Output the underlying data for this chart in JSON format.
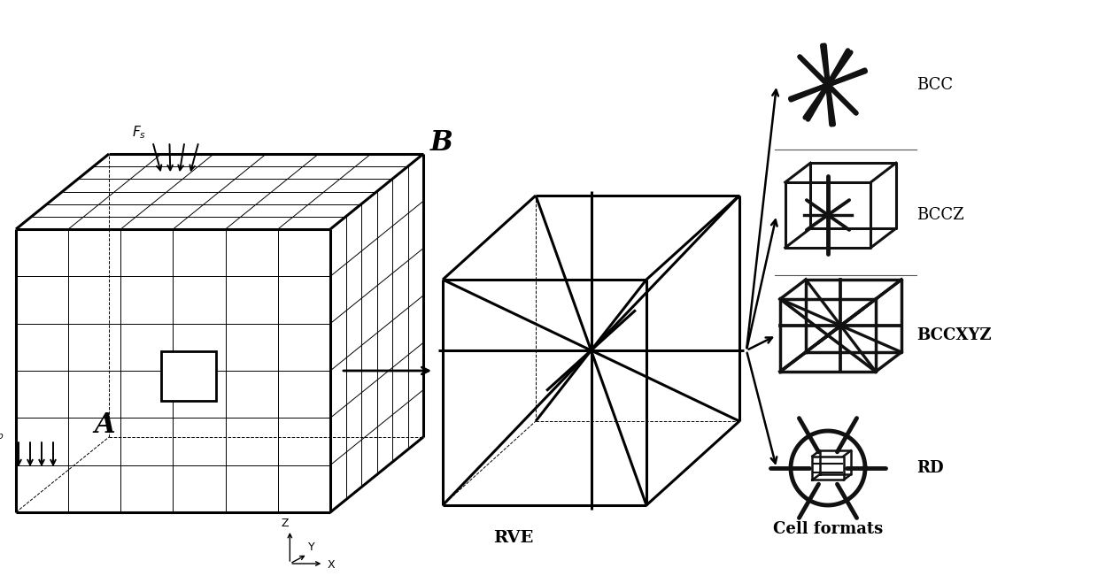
{
  "background_color": "#ffffff",
  "col": "#000000",
  "label_A": "A",
  "label_B": "B",
  "label_RVE": "RVE",
  "label_BCC": "BCC",
  "label_BCCZ": "BCCZ",
  "label_BCCXYZ": "BCCXYZ",
  "label_RD": "RD",
  "label_cell": "Cell formats"
}
